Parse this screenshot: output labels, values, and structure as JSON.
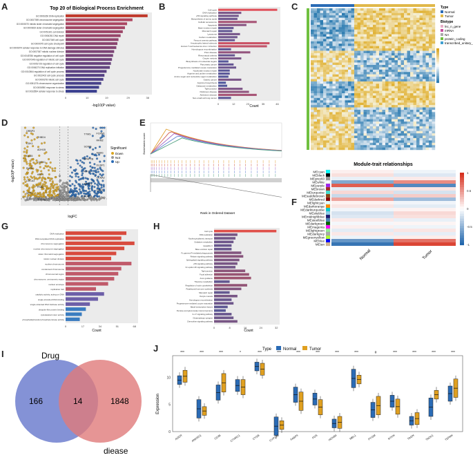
{
  "panels": {
    "a": {
      "letter": "A",
      "title": "Top 20 of Biological Process Enrichment",
      "xlabel": "-log10(P value)"
    },
    "b": {
      "letter": "B",
      "xlabel": "Count"
    },
    "c": {
      "letter": "C",
      "legend": {
        "type_title": "Type",
        "type_items": [
          "Normal",
          "Tumor"
        ],
        "biotype_title": "Biotype",
        "biotype_items": [
          "lnc_n_gene",
          "mRNA",
          "NA",
          "protein_coding",
          "transcribed_unitary_pseudogene"
        ]
      }
    },
    "d": {
      "letter": "D",
      "xlabel": "logFC",
      "ylabel": "-log10(P value)",
      "legend_title": "Significant",
      "legend_items": [
        "Down",
        "Not",
        "Up"
      ],
      "genes": [
        "ORBP3",
        "TYMS",
        "THBD4",
        "RRM2",
        "CDK1",
        "SCRIB",
        "ADH1B",
        "AHBG",
        "DLG5",
        "PPAP2B",
        "CHEK1",
        "DUSP1",
        "FMO2",
        "KIFL1",
        "KRT4",
        "CCNA2",
        "CDCA3",
        "APOC1",
        "PNB1",
        "CDC6",
        "SPP1",
        "BUB1B",
        "TOP2A",
        "FOXM1"
      ]
    },
    "e": {
      "letter": "E",
      "xlabel": "Rank in Ordered Dataset",
      "ylabel": "Enrichment score"
    },
    "f": {
      "letter": "F",
      "title": "Module-trait relationships",
      "columns": [
        "Normal",
        "Tumor"
      ],
      "scale": [
        "1",
        "0.5",
        "0",
        "-0.5",
        "-1"
      ]
    },
    "g": {
      "letter": "G",
      "xlabel": "Count"
    },
    "h": {
      "letter": "H",
      "xlabel": "Count"
    },
    "i": {
      "letter": "I",
      "left_label": "Drug",
      "right_label": "diease",
      "left_only": "166",
      "overlap": "14",
      "right_only": "1848"
    },
    "j": {
      "letter": "J",
      "ylabel": "Expression",
      "legend_title": "Type",
      "legend_items": [
        "Normal",
        "Tumor"
      ]
    }
  },
  "colors": {
    "normal": "#2a6bb5",
    "tumor": "#e0a020",
    "bar_purple": "#6a4b9a",
    "bar_red": "#c0392b",
    "up": "#2a6bb5",
    "down": "#d9a520",
    "not": "#999999",
    "venn_left": "#6f7fcf",
    "venn_right": "#e07a7a"
  },
  "chart_data": [
    {
      "id": "A",
      "type": "bar",
      "orientation": "horizontal",
      "title": "Top 20 of Biological Process Enrichment",
      "xlabel": "-log10(P value)",
      "categories": [
        "GO:0006260 DNA replication",
        "GO:0007059 chromosome segregation",
        "GO:0000070 mitotic sister chromatid segregation",
        "GO:0000819 sister chromatid segregation",
        "GO:0051301 cell division",
        "GO:0006281 DNA repair",
        "GO:0007049 cell cycle",
        "GO:0000075 cell cycle checkpoint",
        "GO:0006974 cellular response to DNA damage stimulus",
        "GO:0007067 mitotic nuclear division",
        "GO:0045786 negative regulation of cell cycle",
        "GO:0007346 regulation of mitotic cell cycle",
        "GO:0051726 regulation of cell cycle",
        "GO:0006270 DNA replication initiation",
        "GO:0010564 regulation of cell cycle process",
        "GO:0022402 cell cycle process",
        "GO:0000278 mitotic cell cycle",
        "GO:0051276 chromosome organization",
        "GO:0006950 response to stress",
        "GO:0033554 cellular response to stress"
      ],
      "values": [
        38,
        31,
        28.5,
        27.5,
        26.5,
        25.5,
        24.5,
        24,
        23.5,
        22.5,
        22,
        21.5,
        21,
        20.5,
        19,
        18,
        17.5,
        16.5,
        15.5,
        14.5
      ]
    },
    {
      "id": "B",
      "type": "bar",
      "orientation": "horizontal",
      "xlabel": "Count",
      "categories": [
        "Cell cycle",
        "DNA replication",
        "p53 signaling pathway",
        "Biosynthesis of amino acids",
        "Cellular senescence",
        "Apoptosis",
        "Base excision repair",
        "Mismatch repair",
        "Lysosome",
        "Carbon metabolism",
        "Fanconi anemia pathway",
        "Amyotrophic lateral sclerosis",
        "Human T-cell leukemia virus 1 infection",
        "Homologous recombination",
        "Prion disease",
        "Rheumatoid arthritis",
        "Oocyte meiosis",
        "Biosynthesis of nucleotide sugars",
        "Pancreatic cancer",
        "Progesterone-mediated oocyte maturation",
        "Nucleotide excision repair",
        "Arginine and proline metabolism",
        "Amino sugar and nucleotide sugar metabolism",
        "Gastric cancer",
        "Arginine biosynthesis",
        "Galactose metabolism",
        "Tight junction",
        "Parkinson disease",
        "Alzheimer disease",
        "Non-small cell lung cancer"
      ],
      "values": [
        46,
        18,
        16,
        15,
        30,
        22,
        12,
        11,
        17,
        15,
        13,
        40,
        38,
        10,
        25,
        13,
        18,
        8,
        12,
        14,
        9,
        9,
        8,
        18,
        6,
        7,
        19,
        24,
        30,
        10
      ]
    },
    {
      "id": "G",
      "type": "bar",
      "orientation": "horizontal",
      "xlabel": "Count",
      "categories": [
        "DNA replication",
        "DNA-templated DNA replication",
        "chromosome segregation",
        "nuclear chromosome segregation",
        "sister chromatid segregation",
        "mitotic nuclear division",
        "nuclear chromosome",
        "condensed chromosome",
        "chromosomal region",
        "chromosome, centromeric region",
        "nuclear envelope",
        "replication fork",
        "catalytic activity, acting on DNA",
        "single-stranded DNA binding",
        "single-stranded DNA helicase activity",
        "ubiquitin-like protein binding",
        "cytoskeletal motor activity",
        "phosphatidylinositol phosphate kinase activity"
      ],
      "values": [
        60,
        55,
        68,
        58,
        50,
        45,
        65,
        55,
        52,
        48,
        42,
        30,
        38,
        32,
        24,
        20,
        16,
        14
      ]
    },
    {
      "id": "H",
      "type": "bar",
      "orientation": "horizontal",
      "xlabel": "Count",
      "categories": [
        "Cell cycle",
        "DNA replication",
        "Nucleocytoplasmic transport",
        "Oxidative metabolism",
        "Hepatitis C",
        "Base excision repair",
        "Fc gamma R-mediated phagocytosis",
        "Relaxin signaling pathway",
        "Sphingolipid signaling pathway",
        "p53 signaling pathway",
        "Fc epsilon RI signaling pathway",
        "Tight junction",
        "Focal adhesion",
        "Axon guidance",
        "Thiamine metabolism",
        "Regulation of actin cytoskeleton",
        "Parathyroid hormone synthesis",
        "Mismatch repair",
        "Oocyte meiosis",
        "Homologous recombination",
        "Progesterone-mediated oocyte maturation",
        "Basal transcription factors",
        "Pentose and glucuronate interconversions",
        "IL-17 signaling pathway",
        "Glutamatergic synapse",
        "Chemokine signaling pathway"
      ],
      "values": [
        32,
        12,
        11,
        10,
        9,
        9,
        14,
        15,
        13,
        12,
        11,
        16,
        18,
        19,
        8,
        17,
        14,
        8,
        12,
        9,
        10,
        7,
        6,
        9,
        10,
        12
      ]
    },
    {
      "id": "F",
      "type": "heatmap",
      "title": "Module-trait relationships",
      "columns": [
        "Normal",
        "Tumor"
      ],
      "rows": [
        "MEcyan",
        "MEblack",
        "MEgrey60",
        "MEwhite",
        "MEpurple",
        "MEbrown",
        "MEturquoise",
        "MEsaddlebrown",
        "MEdarkred",
        "MElightcyan",
        "MEdarkorange",
        "MEdarkturquoise",
        "MEskyblue",
        "MEmidnightblue",
        "MEsteelblue",
        "MEdarkgreen",
        "MEmagenta",
        "MElightgreen",
        "MEdarkgrey",
        "MEgreenyellow",
        "MEblue",
        "MEtan"
      ],
      "values": [
        [
          0.06,
          -0.06
        ],
        [
          0.12,
          -0.12
        ],
        [
          -0.08,
          0.08
        ],
        [
          -0.45,
          0.45
        ],
        [
          0.62,
          -0.62
        ],
        [
          -0.1,
          0.1
        ],
        [
          0.15,
          -0.15
        ],
        [
          -0.2,
          0.2
        ],
        [
          0.35,
          -0.35
        ],
        [
          0.05,
          -0.05
        ],
        [
          0.1,
          -0.1
        ],
        [
          -0.05,
          0.05
        ],
        [
          -0.15,
          0.15
        ],
        [
          -0.12,
          0.12
        ],
        [
          0.08,
          -0.08
        ],
        [
          -0.04,
          0.04
        ],
        [
          0.06,
          -0.06
        ],
        [
          -0.1,
          0.1
        ],
        [
          0.09,
          -0.09
        ],
        [
          -0.07,
          0.07
        ],
        [
          -0.55,
          0.55
        ],
        [
          -0.72,
          0.72
        ]
      ]
    },
    {
      "id": "J",
      "type": "box",
      "ylabel": "Expression",
      "series": [
        {
          "name": "Normal"
        },
        {
          "name": "Tumor"
        }
      ],
      "categories": [
        "AGER",
        "ANKRD1",
        "CD36",
        "CTHRC1",
        "CYSB",
        "CYP1B1",
        "FABP4",
        "FOS",
        "HOXB4",
        "MBL1",
        "PYGM",
        "RTKN",
        "TAGN",
        "TAOK1",
        "TSPAN"
      ],
      "significance": [
        "***",
        "***",
        "***",
        "*",
        "***",
        "***",
        "***",
        "***",
        "***",
        "***",
        "#",
        "***",
        "***",
        "***",
        "***"
      ],
      "medians": [
        [
          9.5,
          10.2
        ],
        [
          4.2,
          3.8
        ],
        [
          7.2,
          9.0
        ],
        [
          8.5,
          8.2
        ],
        [
          12.0,
          11.5
        ],
        [
          1.0,
          1.2
        ],
        [
          6.8,
          5.6
        ],
        [
          6.0,
          4.5
        ],
        [
          1.5,
          1.7
        ],
        [
          9.8,
          9.6
        ],
        [
          4.0,
          4.8
        ],
        [
          5.6,
          4.6
        ],
        [
          2.0,
          2.4
        ],
        [
          4.5,
          6.8
        ],
        [
          7.0,
          8.0
        ]
      ]
    }
  ]
}
